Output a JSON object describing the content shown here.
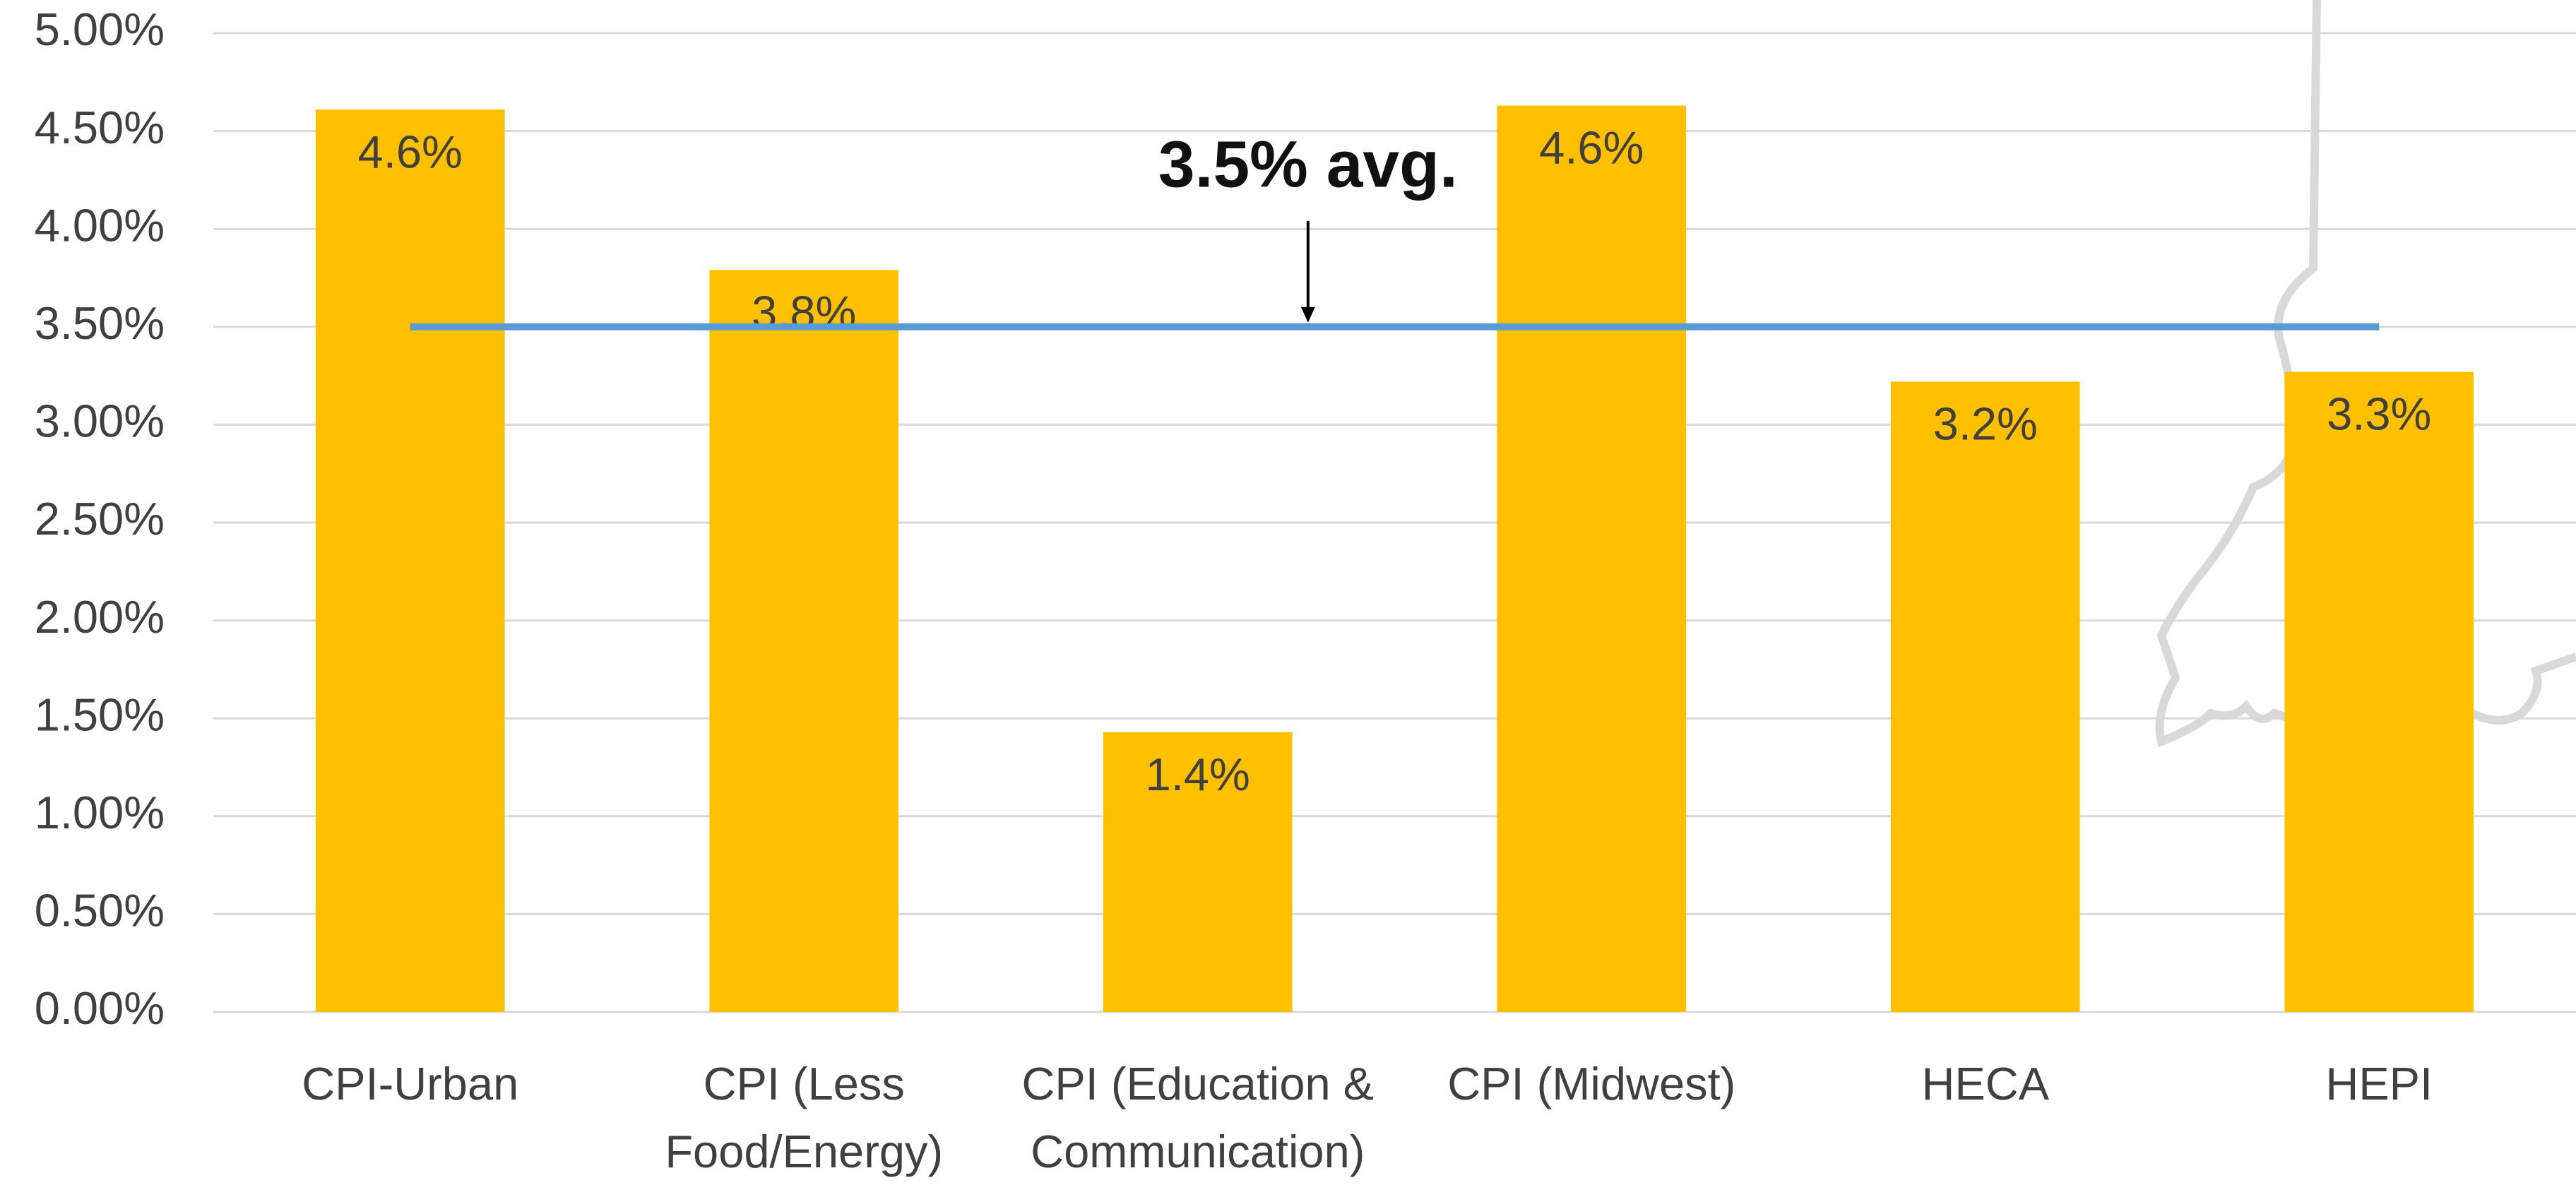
{
  "chart_data": {
    "type": "bar",
    "categories": [
      "CPI-Urban",
      "CPI (Less Food/Energy)",
      "CPI (Education & Communication)",
      "CPI (Midwest)",
      "HECA",
      "HEPI"
    ],
    "values": [
      4.61,
      3.79,
      1.43,
      4.63,
      3.22,
      3.27
    ],
    "value_labels": [
      "4.6%",
      "3.8%",
      "1.4%",
      "4.6%",
      "3.2%",
      "3.3%"
    ],
    "color": "#FFC000",
    "average": {
      "value": 3.5,
      "label": "3.5% avg.",
      "color": "#5B9BD5"
    },
    "ylim": [
      0,
      5
    ],
    "yticks": [
      {
        "value": 0,
        "label": "0.00%"
      },
      {
        "value": 0.5,
        "label": "0.50%"
      },
      {
        "value": 1,
        "label": "1.00%"
      },
      {
        "value": 1.5,
        "label": "1.50%"
      },
      {
        "value": 2,
        "label": "2.00%"
      },
      {
        "value": 2.5,
        "label": "2.50%"
      },
      {
        "value": 3,
        "label": "3.00%"
      },
      {
        "value": 3.5,
        "label": "3.50%"
      },
      {
        "value": 4,
        "label": "4.00%"
      },
      {
        "value": 4.5,
        "label": "4.50%"
      },
      {
        "value": 5,
        "label": "5.00%"
      }
    ],
    "grid": true
  }
}
